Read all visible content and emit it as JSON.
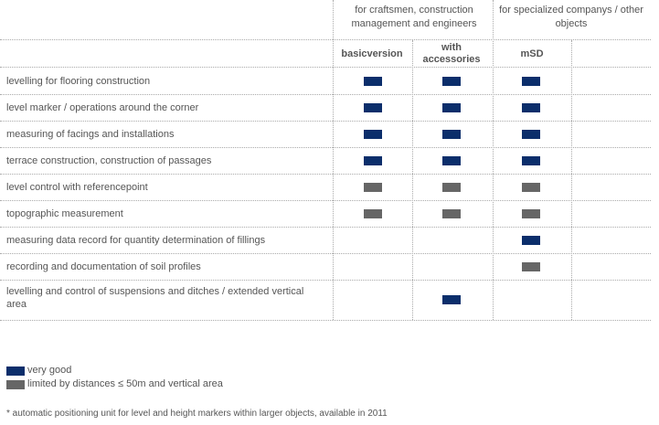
{
  "groups": {
    "craftsmen": "for craftsmen, construction management and engineers",
    "specialized": "for specialized companys / other objects"
  },
  "columns": {
    "basic": "basicversion",
    "accessories": "with accessories",
    "msd": "mSD"
  },
  "colors": {
    "very_good": "#0b2e6b",
    "limited": "#666666"
  },
  "rows": [
    {
      "label": "levelling for flooring construction",
      "basic": "very-good",
      "accessories": "very-good",
      "msd": "very-good"
    },
    {
      "label": "level marker / operations around the corner",
      "basic": "very-good",
      "accessories": "very-good",
      "msd": "very-good"
    },
    {
      "label": "measuring of facings and installations",
      "basic": "very-good",
      "accessories": "very-good",
      "msd": "very-good"
    },
    {
      "label": "terrace construction, construction of passages",
      "basic": "very-good",
      "accessories": "very-good",
      "msd": "very-good"
    },
    {
      "label": "level control with referencepoint",
      "basic": "limited",
      "accessories": "limited",
      "msd": "limited"
    },
    {
      "label": "topographic measurement",
      "basic": "limited",
      "accessories": "limited",
      "msd": "limited"
    },
    {
      "label": "measuring data record for quantity determination of fillings",
      "basic": "",
      "accessories": "",
      "msd": "very-good"
    },
    {
      "label": "recording and documentation of soil profiles",
      "basic": "",
      "accessories": "",
      "msd": "limited"
    },
    {
      "label": "levelling and control of suspensions and ditches / extended vertical area",
      "basic": "",
      "accessories": "very-good",
      "msd": ""
    }
  ],
  "legend": {
    "very_good": "very good",
    "limited": "limited by distances ≤ 50m and vertical area"
  },
  "footnote": "* automatic positioning unit for level and height markers within larger objects, available in 2011"
}
